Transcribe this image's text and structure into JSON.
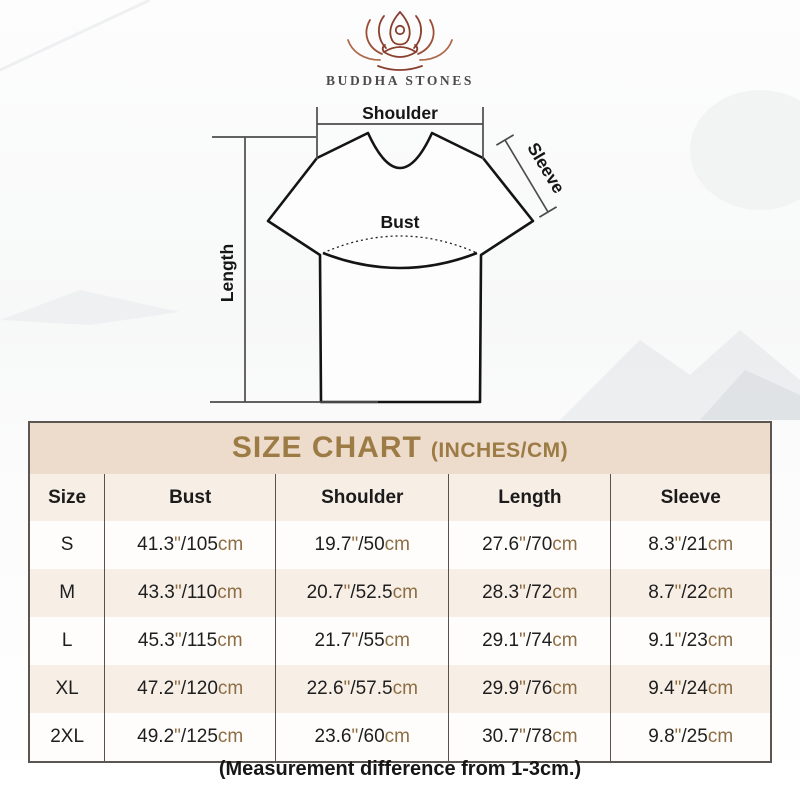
{
  "brand": {
    "name": "BUDDHA STONES",
    "logo_icon": "lotus-meditation-icon"
  },
  "diagram": {
    "labels": {
      "shoulder": "Shoulder",
      "sleeve": "Sleeve",
      "bust": "Bust",
      "length": "Length"
    }
  },
  "size_chart": {
    "title": "SIZE CHART",
    "title_suffix": "(INCHES/CM)",
    "columns": [
      "Size",
      "Bust",
      "Shoulder",
      "Length",
      "Sleeve"
    ],
    "units": {
      "inch_mark": "\"",
      "separator": "/",
      "cm_suffix": "cm"
    },
    "rows": [
      {
        "size": "S",
        "bust": {
          "in": "41.3",
          "cm": "105"
        },
        "shoulder": {
          "in": "19.7",
          "cm": "50"
        },
        "length": {
          "in": "27.6",
          "cm": "70"
        },
        "sleeve": {
          "in": "8.3",
          "cm": "21"
        }
      },
      {
        "size": "M",
        "bust": {
          "in": "43.3",
          "cm": "110"
        },
        "shoulder": {
          "in": "20.7",
          "cm": "52.5"
        },
        "length": {
          "in": "28.3",
          "cm": "72"
        },
        "sleeve": {
          "in": "8.7",
          "cm": "22"
        }
      },
      {
        "size": "L",
        "bust": {
          "in": "45.3",
          "cm": "115"
        },
        "shoulder": {
          "in": "21.7",
          "cm": "55"
        },
        "length": {
          "in": "29.1",
          "cm": "74"
        },
        "sleeve": {
          "in": "9.1",
          "cm": "23"
        }
      },
      {
        "size": "XL",
        "bust": {
          "in": "47.2",
          "cm": "120"
        },
        "shoulder": {
          "in": "22.6",
          "cm": "57.5"
        },
        "length": {
          "in": "29.9",
          "cm": "76"
        },
        "sleeve": {
          "in": "9.4",
          "cm": "24"
        }
      },
      {
        "size": "2XL",
        "bust": {
          "in": "49.2",
          "cm": "125"
        },
        "shoulder": {
          "in": "23.6",
          "cm": "60"
        },
        "length": {
          "in": "30.7",
          "cm": "78"
        },
        "sleeve": {
          "in": "9.8",
          "cm": "25"
        }
      }
    ]
  },
  "footer": {
    "note": "(Measurement difference from 1-3cm.)"
  },
  "colors": {
    "title_gold": "#9c7b45",
    "band_bg": "#eddbcc",
    "stripe_bg": "#f7eee6",
    "row_white": "#fefdfb",
    "border_gray": "#5b5651",
    "accent_tan": "#8d6e44",
    "logo_copper": "#b06a4a",
    "logo_maroon": "#8a3f2f",
    "text_dark": "#1e1e1e"
  },
  "chart_data": {
    "type": "table",
    "title": "SIZE CHART (INCHES/CM)",
    "columns": [
      "Size",
      "Bust",
      "Shoulder",
      "Length",
      "Sleeve"
    ],
    "rows": [
      [
        "S",
        "41.3\"/105cm",
        "19.7\"/50cm",
        "27.6\"/70cm",
        "8.3\"/21cm"
      ],
      [
        "M",
        "43.3\"/110cm",
        "20.7\"/52.5cm",
        "28.3\"/72cm",
        "8.7\"/22cm"
      ],
      [
        "L",
        "45.3\"/115cm",
        "21.7\"/55cm",
        "29.1\"/74cm",
        "9.1\"/23cm"
      ],
      [
        "XL",
        "47.2\"/120cm",
        "22.6\"/57.5cm",
        "29.9\"/76cm",
        "9.4\"/24cm"
      ],
      [
        "2XL",
        "49.2\"/125cm",
        "23.6\"/60cm",
        "30.7\"/78cm",
        "9.8\"/25cm"
      ]
    ],
    "note": "(Measurement difference from 1-3cm.)"
  }
}
